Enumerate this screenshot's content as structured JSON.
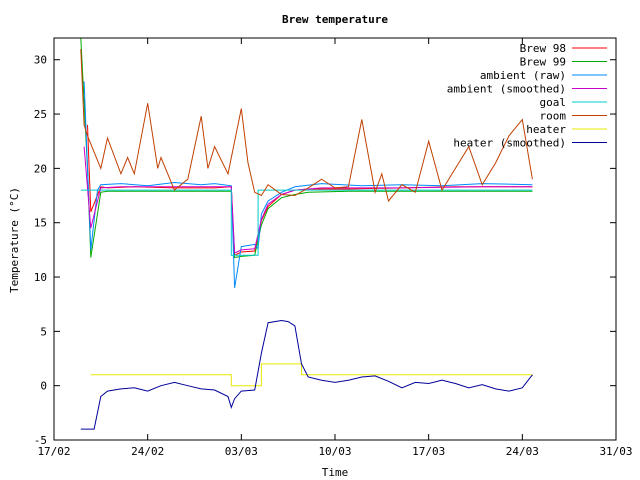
{
  "chart_data": {
    "type": "line",
    "title": "Brew temperature",
    "xlabel": "Time",
    "ylabel": "Temperature (°C)",
    "xlim": [
      "2015-02-17",
      "2015-03-31"
    ],
    "ylim": [
      -5,
      32
    ],
    "x_tick_labels": [
      "17/02",
      "24/02",
      "03/03",
      "10/03",
      "17/03",
      "24/03",
      "31/03"
    ],
    "y_tick_values": [
      -5,
      0,
      5,
      10,
      15,
      20,
      25,
      30
    ],
    "legend_position": "top-right",
    "grid": false,
    "series": [
      {
        "name": "Brew 98",
        "color": "#ff0000",
        "x": [
          "2015-02-19 12:00",
          "2015-02-19 18:00",
          "2015-02-20 12:00",
          "2015-02-21",
          "2015-02-23",
          "2015-02-26",
          "2015-03-01",
          "2015-03-02 06:00",
          "2015-03-02 12:00",
          "2015-03-03",
          "2015-03-04",
          "2015-03-04 12:00",
          "2015-03-05",
          "2015-03-06",
          "2015-03-07",
          "2015-03-08",
          "2015-03-11",
          "2015-03-15",
          "2015-03-19",
          "2015-03-22",
          "2015-03-24 18:00"
        ],
        "values": [
          24,
          16,
          18.3,
          18.2,
          18.3,
          18.2,
          18.2,
          18.3,
          12,
          12.3,
          12.4,
          15.2,
          16.5,
          17.6,
          18,
          18.1,
          18.1,
          18.2,
          18.3,
          18.3,
          18.3
        ]
      },
      {
        "name": "Brew 99",
        "color": "#00aa00",
        "x": [
          "2015-02-19",
          "2015-02-19 12:00",
          "2015-02-19 18:00",
          "2015-02-20 12:00",
          "2015-02-21",
          "2015-02-25",
          "2015-03-01",
          "2015-03-02 06:00",
          "2015-03-02 12:00",
          "2015-03-03",
          "2015-03-04",
          "2015-03-04 12:00",
          "2015-03-05",
          "2015-03-06",
          "2015-03-07",
          "2015-03-08",
          "2015-03-11",
          "2015-03-15",
          "2015-03-19",
          "2015-03-22",
          "2015-03-24 18:00"
        ],
        "values": [
          32,
          20,
          11.8,
          17.8,
          17.9,
          17.9,
          17.9,
          17.9,
          11.8,
          11.9,
          12,
          14.8,
          16.3,
          17.3,
          17.6,
          17.8,
          17.9,
          17.9,
          17.9,
          17.9,
          17.9
        ]
      },
      {
        "name": "ambient (raw)",
        "color": "#0088ff",
        "x": [
          "2015-02-19 06:00",
          "2015-02-19 18:00",
          "2015-02-20 06:00",
          "2015-02-20 12:00",
          "2015-02-22",
          "2015-02-24",
          "2015-02-26",
          "2015-02-28",
          "2015-03-01",
          "2015-03-02 06:00",
          "2015-03-02 12:00",
          "2015-03-03",
          "2015-03-04",
          "2015-03-04 06:00",
          "2015-03-04 12:00",
          "2015-03-05",
          "2015-03-06",
          "2015-03-07",
          "2015-03-09",
          "2015-03-12",
          "2015-03-15",
          "2015-03-18",
          "2015-03-21",
          "2015-03-24 18:00"
        ],
        "values": [
          28,
          12.5,
          18,
          18.5,
          18.6,
          18.4,
          18.7,
          18.5,
          18.6,
          18.4,
          9,
          12.8,
          13,
          12.6,
          15.8,
          17,
          17.8,
          18.3,
          18.6,
          18.4,
          18.5,
          18.4,
          18.6,
          18.5
        ]
      },
      {
        "name": "ambient (smoothed)",
        "color": "#cc00cc",
        "x": [
          "2015-02-19 06:00",
          "2015-02-19 18:00",
          "2015-02-20 12:00",
          "2015-02-22",
          "2015-02-26",
          "2015-03-01",
          "2015-03-02 06:00",
          "2015-03-02 12:00",
          "2015-03-03",
          "2015-03-04",
          "2015-03-04 12:00",
          "2015-03-05",
          "2015-03-06",
          "2015-03-07",
          "2015-03-09",
          "2015-03-15",
          "2015-03-21",
          "2015-03-24 18:00"
        ],
        "values": [
          22,
          14.5,
          18.2,
          18.3,
          18.3,
          18.3,
          18.3,
          12.2,
          12.5,
          12.6,
          15.3,
          16.7,
          17.6,
          18,
          18.2,
          18.2,
          18.3,
          18.3
        ]
      },
      {
        "name": "goal",
        "color": "#00cccc",
        "x": [
          "2015-02-19",
          "2015-03-02 06:00",
          "2015-03-02 06:00",
          "2015-03-04 06:00",
          "2015-03-04 06:00",
          "2015-03-24 18:00"
        ],
        "values": [
          18,
          18,
          12,
          12,
          18,
          18
        ]
      },
      {
        "name": "room",
        "color": "#c04000",
        "x": [
          "2015-02-19",
          "2015-02-19 06:00",
          "2015-02-19 12:00",
          "2015-02-20",
          "2015-02-20 12:00",
          "2015-02-21",
          "2015-02-22",
          "2015-02-22 12:00",
          "2015-02-23",
          "2015-02-24",
          "2015-02-24 18:00",
          "2015-02-25",
          "2015-02-26",
          "2015-02-27",
          "2015-02-28",
          "2015-02-28 12:00",
          "2015-03-01",
          "2015-03-02",
          "2015-03-03",
          "2015-03-03 12:00",
          "2015-03-04",
          "2015-03-04 12:00",
          "2015-03-05",
          "2015-03-06",
          "2015-03-07",
          "2015-03-08",
          "2015-03-09",
          "2015-03-10",
          "2015-03-11",
          "2015-03-12",
          "2015-03-13",
          "2015-03-13 12:00",
          "2015-03-14",
          "2015-03-15",
          "2015-03-16",
          "2015-03-17",
          "2015-03-18",
          "2015-03-19",
          "2015-03-20",
          "2015-03-21",
          "2015-03-22",
          "2015-03-23",
          "2015-03-24",
          "2015-03-24 18:00"
        ],
        "values": [
          31,
          24,
          23,
          21.5,
          20,
          22.8,
          19.5,
          21,
          19.5,
          26,
          20,
          21,
          18,
          19,
          24.8,
          20,
          22,
          19.5,
          25.5,
          20.5,
          17.8,
          17.5,
          18.5,
          17.6,
          17.5,
          18.2,
          19,
          18.2,
          18.3,
          24.5,
          17.8,
          19.5,
          17,
          18.5,
          17.8,
          22.5,
          18,
          20,
          22,
          18.5,
          20.5,
          23,
          24.5,
          19
        ]
      },
      {
        "name": "heater",
        "color": "#e8e800",
        "x": [
          "2015-02-19 18:00",
          "2015-03-02 06:00",
          "2015-03-02 06:00",
          "2015-03-04 12:00",
          "2015-03-04 12:00",
          "2015-03-07 12:00",
          "2015-03-07 12:00",
          "2015-03-24 18:00"
        ],
        "values": [
          1,
          1,
          0,
          0,
          2,
          2,
          1,
          1
        ]
      },
      {
        "name": "heater (smoothed)",
        "color": "#000099",
        "x": [
          "2015-02-19",
          "2015-02-20",
          "2015-02-20 12:00",
          "2015-02-21",
          "2015-02-22",
          "2015-02-23",
          "2015-02-24",
          "2015-02-25",
          "2015-02-26",
          "2015-02-27",
          "2015-02-28",
          "2015-03-01",
          "2015-03-02",
          "2015-03-02 06:00",
          "2015-03-02 12:00",
          "2015-03-03",
          "2015-03-04",
          "2015-03-04 12:00",
          "2015-03-05",
          "2015-03-06",
          "2015-03-06 12:00",
          "2015-03-07",
          "2015-03-07 12:00",
          "2015-03-08",
          "2015-03-09",
          "2015-03-10",
          "2015-03-11",
          "2015-03-12",
          "2015-03-13",
          "2015-03-14",
          "2015-03-15",
          "2015-03-16",
          "2015-03-17",
          "2015-03-18",
          "2015-03-19",
          "2015-03-20",
          "2015-03-21",
          "2015-03-22",
          "2015-03-23",
          "2015-03-24",
          "2015-03-24 18:00"
        ],
        "values": [
          -4,
          -4,
          -1,
          -0.5,
          -0.3,
          -0.2,
          -0.5,
          0,
          0.3,
          0,
          -0.3,
          -0.4,
          -1,
          -2,
          -1.2,
          -0.5,
          -0.4,
          3,
          5.8,
          6,
          5.9,
          5.5,
          2,
          0.8,
          0.5,
          0.3,
          0.5,
          0.8,
          0.9,
          0.4,
          -0.2,
          0.3,
          0.2,
          0.5,
          0.2,
          -0.2,
          0.1,
          -0.3,
          -0.5,
          -0.2,
          1
        ]
      }
    ]
  }
}
